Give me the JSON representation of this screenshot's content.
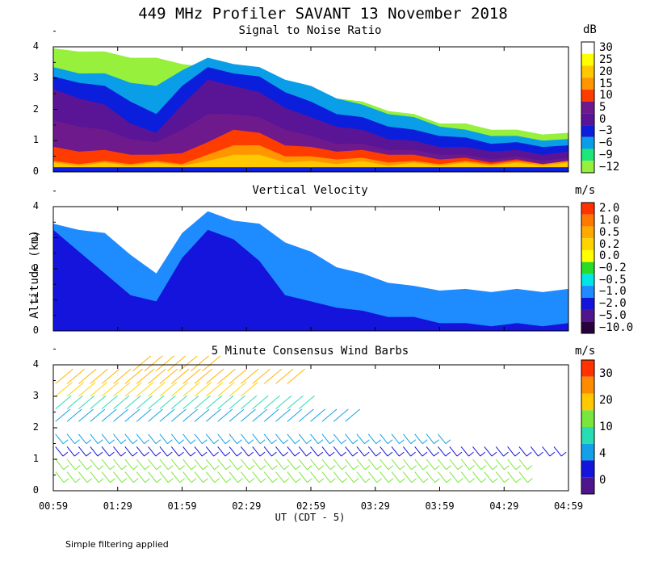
{
  "figure_title": "449 MHz Profiler SAVANT 13 November 2018",
  "y_axis_label": "Altitude (km)",
  "x_axis_label": "UT  (CDT - 5)",
  "footnote": "Simple filtering applied",
  "chart_data": [
    {
      "type": "heatmap",
      "title": "Signal to Noise Ratio",
      "colorbar_unit": "dB",
      "colorbar_labels": [
        "30",
        "25",
        "20",
        "15",
        "10",
        "5",
        "0",
        "−3",
        "−6",
        "−9",
        "−12"
      ],
      "colorbar_colors": [
        "#ffffff",
        "#ffff00",
        "#ffc800",
        "#ff9600",
        "#ff3c00",
        "#6e1a8c",
        "#5a1496",
        "#0a1edc",
        "#0a9ee8",
        "#1ee678",
        "#96f03c"
      ],
      "x_ticks": [
        "00:59",
        "01:29",
        "01:59",
        "02:29",
        "02:59",
        "03:29",
        "03:59",
        "04:29",
        "04:59"
      ],
      "y_ticks": [
        "0",
        "1",
        "2",
        "3",
        "4"
      ],
      "ylim": [
        0,
        4
      ],
      "xlim_hours": [
        0.983,
        4.983
      ],
      "layers": [
        {
          "level_db": -12,
          "color": "#96f03c",
          "top_km": [
            3.9,
            3.9,
            3.8,
            3.7,
            3.6,
            3.5,
            3.3,
            3.2,
            3.0,
            2.8,
            2.6,
            2.4,
            2.2,
            2.0,
            1.8,
            1.6,
            1.5,
            1.4,
            1.3,
            1.25,
            1.2
          ]
        },
        {
          "level_db": -6,
          "color": "#0a9ee8",
          "top_km": [
            3.3,
            3.2,
            3.1,
            2.9,
            2.7,
            3.3,
            3.6,
            3.5,
            3.3,
            3.0,
            2.7,
            2.4,
            2.1,
            1.9,
            1.7,
            1.5,
            1.3,
            1.2,
            1.1,
            1.05,
            1.0
          ]
        },
        {
          "level_db": 0,
          "color": "#0a1edc",
          "top_km": [
            3.0,
            2.9,
            2.7,
            2.3,
            1.8,
            2.8,
            3.3,
            3.2,
            3.0,
            2.6,
            2.2,
            1.9,
            1.7,
            1.5,
            1.3,
            1.2,
            1.05,
            0.95,
            0.9,
            0.85,
            0.8
          ]
        },
        {
          "level_db": 5,
          "color": "#5a1496",
          "top_km": [
            2.6,
            2.4,
            2.1,
            1.6,
            1.2,
            2.2,
            2.9,
            2.8,
            2.5,
            2.1,
            1.7,
            1.5,
            1.3,
            1.1,
            0.95,
            0.85,
            0.75,
            0.7,
            0.65,
            0.6,
            0.6
          ]
        },
        {
          "level_db": 10,
          "color": "#6e1a8c",
          "top_km": [
            1.6,
            1.5,
            1.3,
            1.1,
            0.9,
            1.4,
            1.8,
            1.9,
            1.7,
            1.4,
            1.1,
            0.95,
            0.85,
            0.75,
            0.65,
            0.6,
            0.5,
            0.45,
            0.45,
            0.4,
            0.4
          ]
        },
        {
          "level_db": 15,
          "color": "#ff3c00",
          "top_km": [
            0.75,
            0.7,
            0.65,
            0.6,
            0.5,
            0.65,
            0.9,
            1.4,
            1.2,
            0.9,
            0.75,
            0.7,
            0.65,
            0.6,
            0.5,
            0.45,
            0.4,
            0.35,
            0.35,
            0.3,
            0.3
          ]
        },
        {
          "level_db": 20,
          "color": "#ff9600",
          "top_km": [
            0.3,
            0.3,
            0.3,
            0.3,
            0.3,
            0.3,
            0.5,
            0.9,
            0.8,
            0.55,
            0.45,
            0.45,
            0.4,
            0.35,
            0.3,
            0.3,
            0.3,
            0.3,
            0.3,
            0.3,
            0.3
          ]
        },
        {
          "level_db": 25,
          "color": "#ffc800",
          "top_km": [
            0.25,
            0.25,
            0.25,
            0.25,
            0.25,
            0.25,
            0.3,
            0.6,
            0.5,
            0.35,
            0.3,
            0.3,
            0.3,
            0.25,
            0.25,
            0.25,
            0.25,
            0.25,
            0.25,
            0.25,
            0.25
          ]
        }
      ]
    },
    {
      "type": "heatmap",
      "title": "Vertical Velocity",
      "colorbar_unit": "m/s",
      "colorbar_labels": [
        "2.0",
        "1.0",
        "0.5",
        "0.2",
        "0.0",
        "−0.2",
        "−0.5",
        "−1.0",
        "−2.0",
        "−5.0",
        "−10.0"
      ],
      "colorbar_colors": [
        "#ff3200",
        "#ff7800",
        "#ffaa00",
        "#ffd200",
        "#ffff00",
        "#28dc28",
        "#00e6e6",
        "#1e8cff",
        "#1414dc",
        "#50148c",
        "#28003c"
      ],
      "x_ticks": [
        "00:59",
        "01:29",
        "01:59",
        "02:29",
        "02:59",
        "03:29",
        "03:59",
        "04:29",
        "04:59"
      ],
      "y_ticks": [
        "0",
        "1",
        "2",
        "3",
        "4"
      ],
      "ylim": [
        0,
        4
      ],
      "layers": [
        {
          "value_ms": -0.5,
          "color": "#1e8cff",
          "top_km": [
            3.4,
            3.3,
            3.1,
            2.5,
            1.8,
            3.2,
            3.8,
            3.6,
            3.4,
            2.9,
            2.5,
            2.1,
            1.8,
            1.6,
            1.4,
            1.35,
            1.3,
            1.3,
            1.3,
            1.3,
            1.3
          ]
        },
        {
          "value_ms": -2.0,
          "color": "#1414dc",
          "top_km": [
            3.2,
            2.6,
            1.8,
            1.2,
            0.9,
            2.4,
            3.2,
            3.0,
            2.2,
            1.2,
            0.9,
            0.8,
            0.6,
            0.5,
            0.4,
            0.3,
            0.2,
            0.2,
            0.2,
            0.2,
            0.2
          ]
        }
      ]
    },
    {
      "type": "scatter",
      "subtype": "wind_barbs",
      "title": "5 Minute Consensus Wind Barbs",
      "colorbar_unit": "m/s",
      "colorbar_labels": [
        "30",
        "20",
        "10",
        "4",
        "0"
      ],
      "colorbar_colors": [
        "#ff3200",
        "#ff8c00",
        "#ffc800",
        "#78e63c",
        "#28dcb4",
        "#14a0e6",
        "#1414dc",
        "#50148c"
      ],
      "x_ticks": [
        "00:59",
        "01:29",
        "01:59",
        "02:29",
        "02:59",
        "03:29",
        "03:59",
        "04:29",
        "04:59"
      ],
      "y_ticks": [
        "0",
        "1",
        "2",
        "3",
        "4"
      ],
      "ylim": [
        0,
        4
      ],
      "barb_rows": [
        {
          "alt_km": 3.8,
          "speed_ms": 25,
          "x_start_h": 1.6,
          "x_end_h": 2.2
        },
        {
          "alt_km": 3.4,
          "speed_ms": 22,
          "x_start_h": 1.0,
          "x_end_h": 2.8
        },
        {
          "alt_km": 3.0,
          "speed_ms": 18,
          "x_start_h": 1.0,
          "x_end_h": 2.5
        },
        {
          "alt_km": 2.6,
          "speed_ms": 12,
          "x_start_h": 1.0,
          "x_end_h": 2.9
        },
        {
          "alt_km": 2.2,
          "speed_ms": 6,
          "x_start_h": 1.0,
          "x_end_h": 3.3
        },
        {
          "alt_km": 1.8,
          "speed_ms": 4,
          "x_start_h": 1.0,
          "x_end_h": 4.0
        },
        {
          "alt_km": 1.4,
          "speed_ms": 3,
          "x_start_h": 1.0,
          "x_end_h": 4.9
        },
        {
          "alt_km": 1.0,
          "speed_ms": 8,
          "x_start_h": 1.0,
          "x_end_h": 4.6
        },
        {
          "alt_km": 0.6,
          "speed_ms": 9,
          "x_start_h": 1.0,
          "x_end_h": 4.6
        }
      ]
    }
  ]
}
